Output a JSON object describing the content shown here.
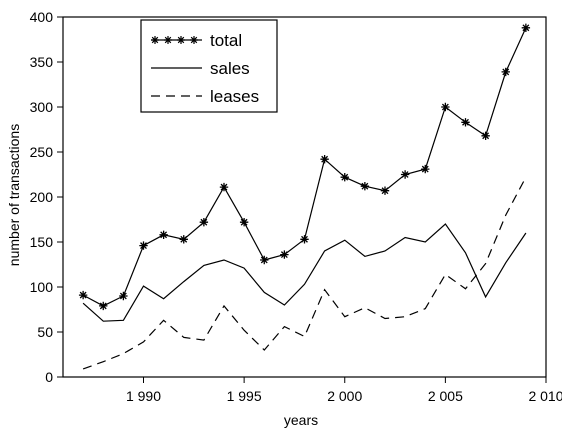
{
  "chart_data": {
    "type": "line",
    "xlabel": "years",
    "ylabel": "number of transactions",
    "xlim": [
      1986,
      2010
    ],
    "ylim": [
      0,
      400
    ],
    "x_ticks": [
      1990,
      1995,
      2000,
      2005,
      2010
    ],
    "x_tick_labels": [
      "1 990",
      "1 995",
      "2 000",
      "2 005",
      "2 010"
    ],
    "y_ticks": [
      0,
      50,
      100,
      150,
      200,
      250,
      300,
      350,
      400
    ],
    "y_tick_labels": [
      "0",
      "50",
      "100",
      "150",
      "200",
      "250",
      "300",
      "350",
      "400"
    ],
    "grid": false,
    "legend_position": "top-left",
    "x": [
      1987,
      1988,
      1989,
      1990,
      1991,
      1992,
      1993,
      1994,
      1995,
      1996,
      1997,
      1998,
      1999,
      2000,
      2001,
      2002,
      2003,
      2004,
      2005,
      2006,
      2007,
      2008,
      2009
    ],
    "series": [
      {
        "name": "total",
        "style": "solid-star",
        "color": "#000000",
        "values": [
          91,
          79,
          90,
          146,
          158,
          153,
          172,
          211,
          172,
          130,
          136,
          153,
          242,
          222,
          212,
          207,
          225,
          231,
          300,
          283,
          268,
          339,
          388
        ]
      },
      {
        "name": "sales",
        "style": "solid",
        "color": "#000000",
        "values": [
          82,
          62,
          63,
          101,
          87,
          106,
          124,
          130,
          121,
          94,
          80,
          103,
          140,
          152,
          134,
          140,
          155,
          150,
          170,
          138,
          89,
          127,
          160
        ]
      },
      {
        "name": "leases",
        "style": "dashed",
        "color": "#000000",
        "values": [
          9,
          17,
          26,
          39,
          63,
          44,
          41,
          79,
          52,
          30,
          56,
          45,
          97,
          67,
          77,
          65,
          67,
          76,
          114,
          98,
          126,
          180,
          222
        ]
      }
    ]
  }
}
